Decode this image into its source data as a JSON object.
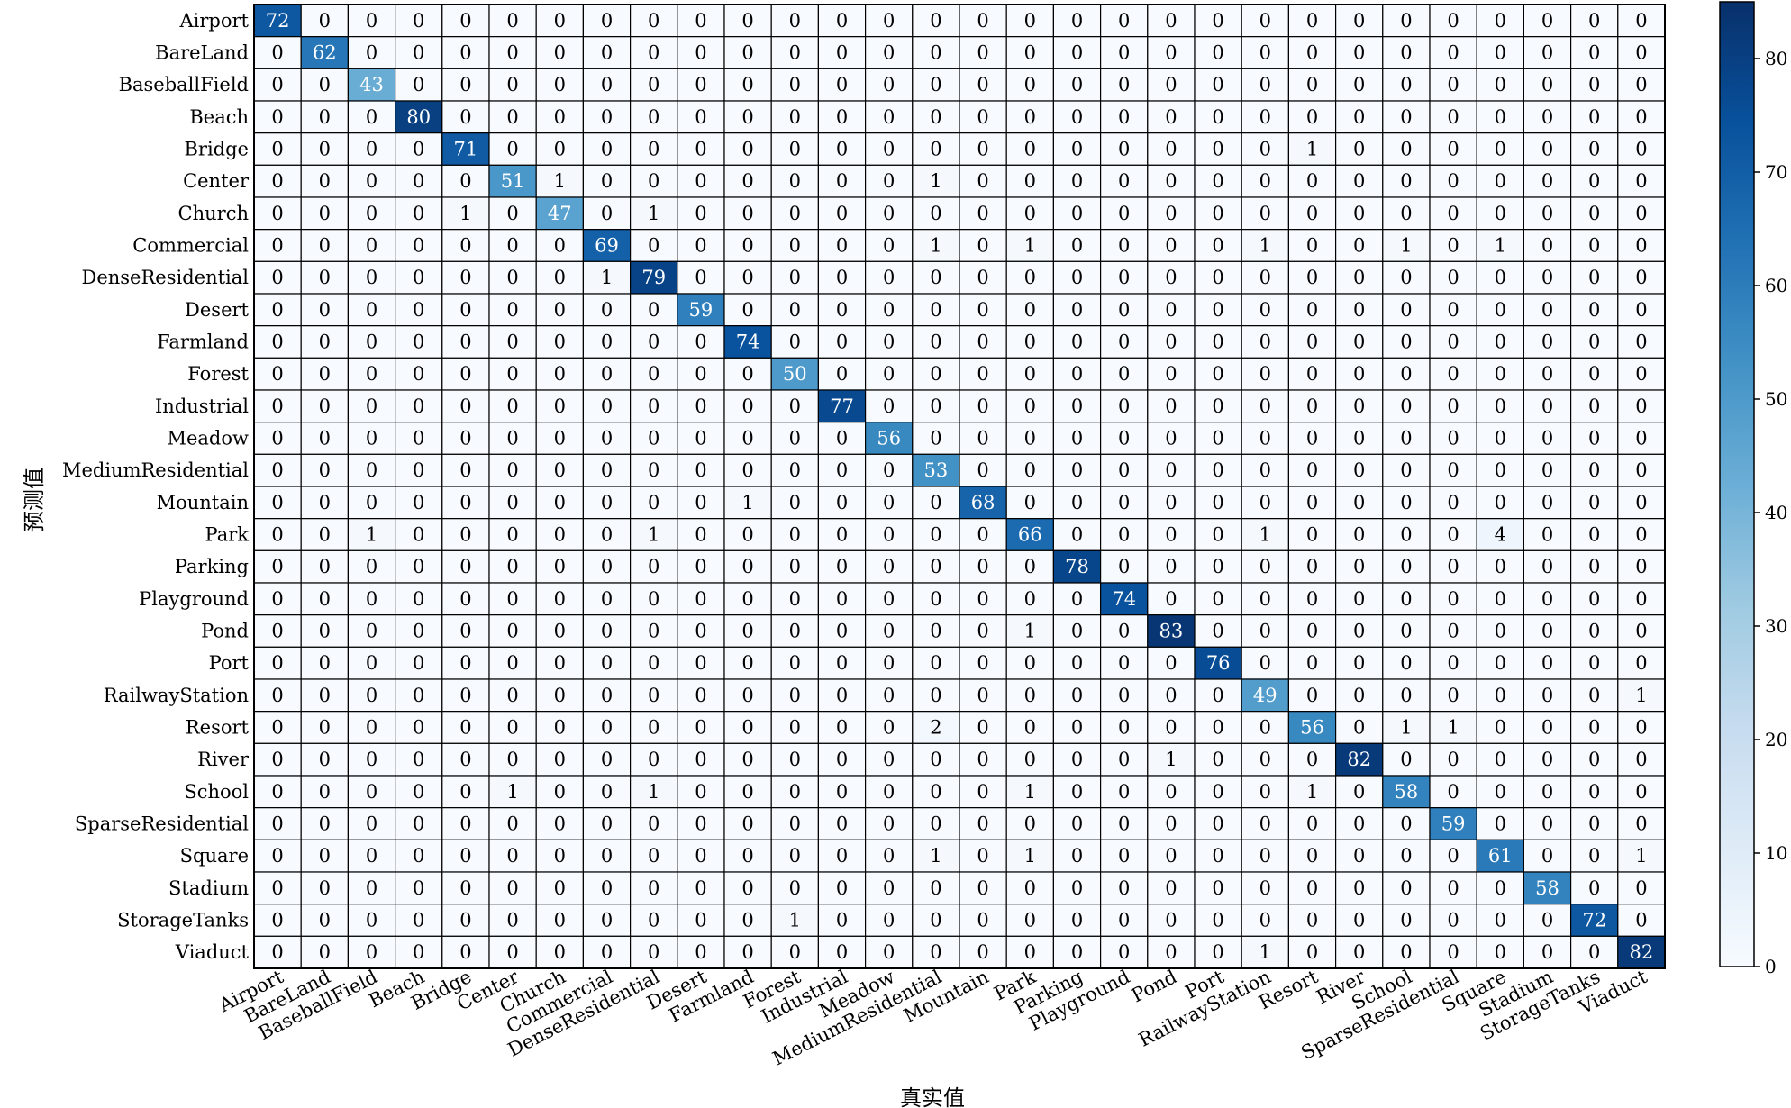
{
  "chart_data": {
    "type": "heatmap",
    "xlabel": "真实值",
    "ylabel": "预测值",
    "categories": [
      "Airport",
      "BareLand",
      "BaseballField",
      "Beach",
      "Bridge",
      "Center",
      "Church",
      "Commercial",
      "DenseResidential",
      "Desert",
      "Farmland",
      "Forest",
      "Industrial",
      "Meadow",
      "MediumResidential",
      "Mountain",
      "Park",
      "Parking",
      "Playground",
      "Pond",
      "Port",
      "RailwayStation",
      "Resort",
      "River",
      "School",
      "SparseResidential",
      "Square",
      "Stadium",
      "StorageTanks",
      "Viaduct"
    ],
    "matrix": [
      [
        72,
        0,
        0,
        0,
        0,
        0,
        0,
        0,
        0,
        0,
        0,
        0,
        0,
        0,
        0,
        0,
        0,
        0,
        0,
        0,
        0,
        0,
        0,
        0,
        0,
        0,
        0,
        0,
        0,
        0
      ],
      [
        0,
        62,
        0,
        0,
        0,
        0,
        0,
        0,
        0,
        0,
        0,
        0,
        0,
        0,
        0,
        0,
        0,
        0,
        0,
        0,
        0,
        0,
        0,
        0,
        0,
        0,
        0,
        0,
        0,
        0
      ],
      [
        0,
        0,
        43,
        0,
        0,
        0,
        0,
        0,
        0,
        0,
        0,
        0,
        0,
        0,
        0,
        0,
        0,
        0,
        0,
        0,
        0,
        0,
        0,
        0,
        0,
        0,
        0,
        0,
        0,
        0
      ],
      [
        0,
        0,
        0,
        80,
        0,
        0,
        0,
        0,
        0,
        0,
        0,
        0,
        0,
        0,
        0,
        0,
        0,
        0,
        0,
        0,
        0,
        0,
        0,
        0,
        0,
        0,
        0,
        0,
        0,
        0
      ],
      [
        0,
        0,
        0,
        0,
        71,
        0,
        0,
        0,
        0,
        0,
        0,
        0,
        0,
        0,
        0,
        0,
        0,
        0,
        0,
        0,
        0,
        0,
        1,
        0,
        0,
        0,
        0,
        0,
        0,
        0
      ],
      [
        0,
        0,
        0,
        0,
        0,
        51,
        1,
        0,
        0,
        0,
        0,
        0,
        0,
        0,
        1,
        0,
        0,
        0,
        0,
        0,
        0,
        0,
        0,
        0,
        0,
        0,
        0,
        0,
        0,
        0
      ],
      [
        0,
        0,
        0,
        0,
        1,
        0,
        47,
        0,
        1,
        0,
        0,
        0,
        0,
        0,
        0,
        0,
        0,
        0,
        0,
        0,
        0,
        0,
        0,
        0,
        0,
        0,
        0,
        0,
        0,
        0
      ],
      [
        0,
        0,
        0,
        0,
        0,
        0,
        0,
        69,
        0,
        0,
        0,
        0,
        0,
        0,
        1,
        0,
        1,
        0,
        0,
        0,
        0,
        1,
        0,
        0,
        1,
        0,
        1,
        0,
        0,
        0
      ],
      [
        0,
        0,
        0,
        0,
        0,
        0,
        0,
        1,
        79,
        0,
        0,
        0,
        0,
        0,
        0,
        0,
        0,
        0,
        0,
        0,
        0,
        0,
        0,
        0,
        0,
        0,
        0,
        0,
        0,
        0
      ],
      [
        0,
        0,
        0,
        0,
        0,
        0,
        0,
        0,
        0,
        59,
        0,
        0,
        0,
        0,
        0,
        0,
        0,
        0,
        0,
        0,
        0,
        0,
        0,
        0,
        0,
        0,
        0,
        0,
        0,
        0
      ],
      [
        0,
        0,
        0,
        0,
        0,
        0,
        0,
        0,
        0,
        0,
        74,
        0,
        0,
        0,
        0,
        0,
        0,
        0,
        0,
        0,
        0,
        0,
        0,
        0,
        0,
        0,
        0,
        0,
        0,
        0
      ],
      [
        0,
        0,
        0,
        0,
        0,
        0,
        0,
        0,
        0,
        0,
        0,
        50,
        0,
        0,
        0,
        0,
        0,
        0,
        0,
        0,
        0,
        0,
        0,
        0,
        0,
        0,
        0,
        0,
        0,
        0
      ],
      [
        0,
        0,
        0,
        0,
        0,
        0,
        0,
        0,
        0,
        0,
        0,
        0,
        77,
        0,
        0,
        0,
        0,
        0,
        0,
        0,
        0,
        0,
        0,
        0,
        0,
        0,
        0,
        0,
        0,
        0
      ],
      [
        0,
        0,
        0,
        0,
        0,
        0,
        0,
        0,
        0,
        0,
        0,
        0,
        0,
        56,
        0,
        0,
        0,
        0,
        0,
        0,
        0,
        0,
        0,
        0,
        0,
        0,
        0,
        0,
        0,
        0
      ],
      [
        0,
        0,
        0,
        0,
        0,
        0,
        0,
        0,
        0,
        0,
        0,
        0,
        0,
        0,
        53,
        0,
        0,
        0,
        0,
        0,
        0,
        0,
        0,
        0,
        0,
        0,
        0,
        0,
        0,
        0
      ],
      [
        0,
        0,
        0,
        0,
        0,
        0,
        0,
        0,
        0,
        0,
        1,
        0,
        0,
        0,
        0,
        68,
        0,
        0,
        0,
        0,
        0,
        0,
        0,
        0,
        0,
        0,
        0,
        0,
        0,
        0
      ],
      [
        0,
        0,
        1,
        0,
        0,
        0,
        0,
        0,
        1,
        0,
        0,
        0,
        0,
        0,
        0,
        0,
        66,
        0,
        0,
        0,
        0,
        1,
        0,
        0,
        0,
        0,
        4,
        0,
        0,
        0
      ],
      [
        0,
        0,
        0,
        0,
        0,
        0,
        0,
        0,
        0,
        0,
        0,
        0,
        0,
        0,
        0,
        0,
        0,
        78,
        0,
        0,
        0,
        0,
        0,
        0,
        0,
        0,
        0,
        0,
        0,
        0
      ],
      [
        0,
        0,
        0,
        0,
        0,
        0,
        0,
        0,
        0,
        0,
        0,
        0,
        0,
        0,
        0,
        0,
        0,
        0,
        74,
        0,
        0,
        0,
        0,
        0,
        0,
        0,
        0,
        0,
        0,
        0
      ],
      [
        0,
        0,
        0,
        0,
        0,
        0,
        0,
        0,
        0,
        0,
        0,
        0,
        0,
        0,
        0,
        0,
        1,
        0,
        0,
        83,
        0,
        0,
        0,
        0,
        0,
        0,
        0,
        0,
        0,
        0
      ],
      [
        0,
        0,
        0,
        0,
        0,
        0,
        0,
        0,
        0,
        0,
        0,
        0,
        0,
        0,
        0,
        0,
        0,
        0,
        0,
        0,
        76,
        0,
        0,
        0,
        0,
        0,
        0,
        0,
        0,
        0
      ],
      [
        0,
        0,
        0,
        0,
        0,
        0,
        0,
        0,
        0,
        0,
        0,
        0,
        0,
        0,
        0,
        0,
        0,
        0,
        0,
        0,
        0,
        49,
        0,
        0,
        0,
        0,
        0,
        0,
        0,
        1
      ],
      [
        0,
        0,
        0,
        0,
        0,
        0,
        0,
        0,
        0,
        0,
        0,
        0,
        0,
        0,
        2,
        0,
        0,
        0,
        0,
        0,
        0,
        0,
        56,
        0,
        1,
        1,
        0,
        0,
        0,
        0
      ],
      [
        0,
        0,
        0,
        0,
        0,
        0,
        0,
        0,
        0,
        0,
        0,
        0,
        0,
        0,
        0,
        0,
        0,
        0,
        0,
        1,
        0,
        0,
        0,
        82,
        0,
        0,
        0,
        0,
        0,
        0
      ],
      [
        0,
        0,
        0,
        0,
        0,
        1,
        0,
        0,
        1,
        0,
        0,
        0,
        0,
        0,
        0,
        0,
        1,
        0,
        0,
        0,
        0,
        0,
        1,
        0,
        58,
        0,
        0,
        0,
        0,
        0
      ],
      [
        0,
        0,
        0,
        0,
        0,
        0,
        0,
        0,
        0,
        0,
        0,
        0,
        0,
        0,
        0,
        0,
        0,
        0,
        0,
        0,
        0,
        0,
        0,
        0,
        0,
        59,
        0,
        0,
        0,
        0
      ],
      [
        0,
        0,
        0,
        0,
        0,
        0,
        0,
        0,
        0,
        0,
        0,
        0,
        0,
        0,
        1,
        0,
        1,
        0,
        0,
        0,
        0,
        0,
        0,
        0,
        0,
        0,
        61,
        0,
        0,
        1
      ],
      [
        0,
        0,
        0,
        0,
        0,
        0,
        0,
        0,
        0,
        0,
        0,
        0,
        0,
        0,
        0,
        0,
        0,
        0,
        0,
        0,
        0,
        0,
        0,
        0,
        0,
        0,
        0,
        58,
        0,
        0
      ],
      [
        0,
        0,
        0,
        0,
        0,
        0,
        0,
        0,
        0,
        0,
        0,
        1,
        0,
        0,
        0,
        0,
        0,
        0,
        0,
        0,
        0,
        0,
        0,
        0,
        0,
        0,
        0,
        0,
        72,
        0
      ],
      [
        0,
        0,
        0,
        0,
        0,
        0,
        0,
        0,
        0,
        0,
        0,
        0,
        0,
        0,
        0,
        0,
        0,
        0,
        0,
        0,
        0,
        1,
        0,
        0,
        0,
        0,
        0,
        0,
        0,
        82
      ]
    ],
    "colorbar": {
      "min": 0,
      "max": 85,
      "ticks": [
        0,
        10,
        20,
        30,
        40,
        50,
        60,
        70,
        80
      ]
    },
    "colormap": "Blues",
    "colors": {
      "low": "#f7fbff",
      "high": "#08306b",
      "grid": "#000000",
      "text_dark": "#000000",
      "text_light": "#ffffff"
    },
    "grid": true,
    "legend": "colorbar-right"
  }
}
